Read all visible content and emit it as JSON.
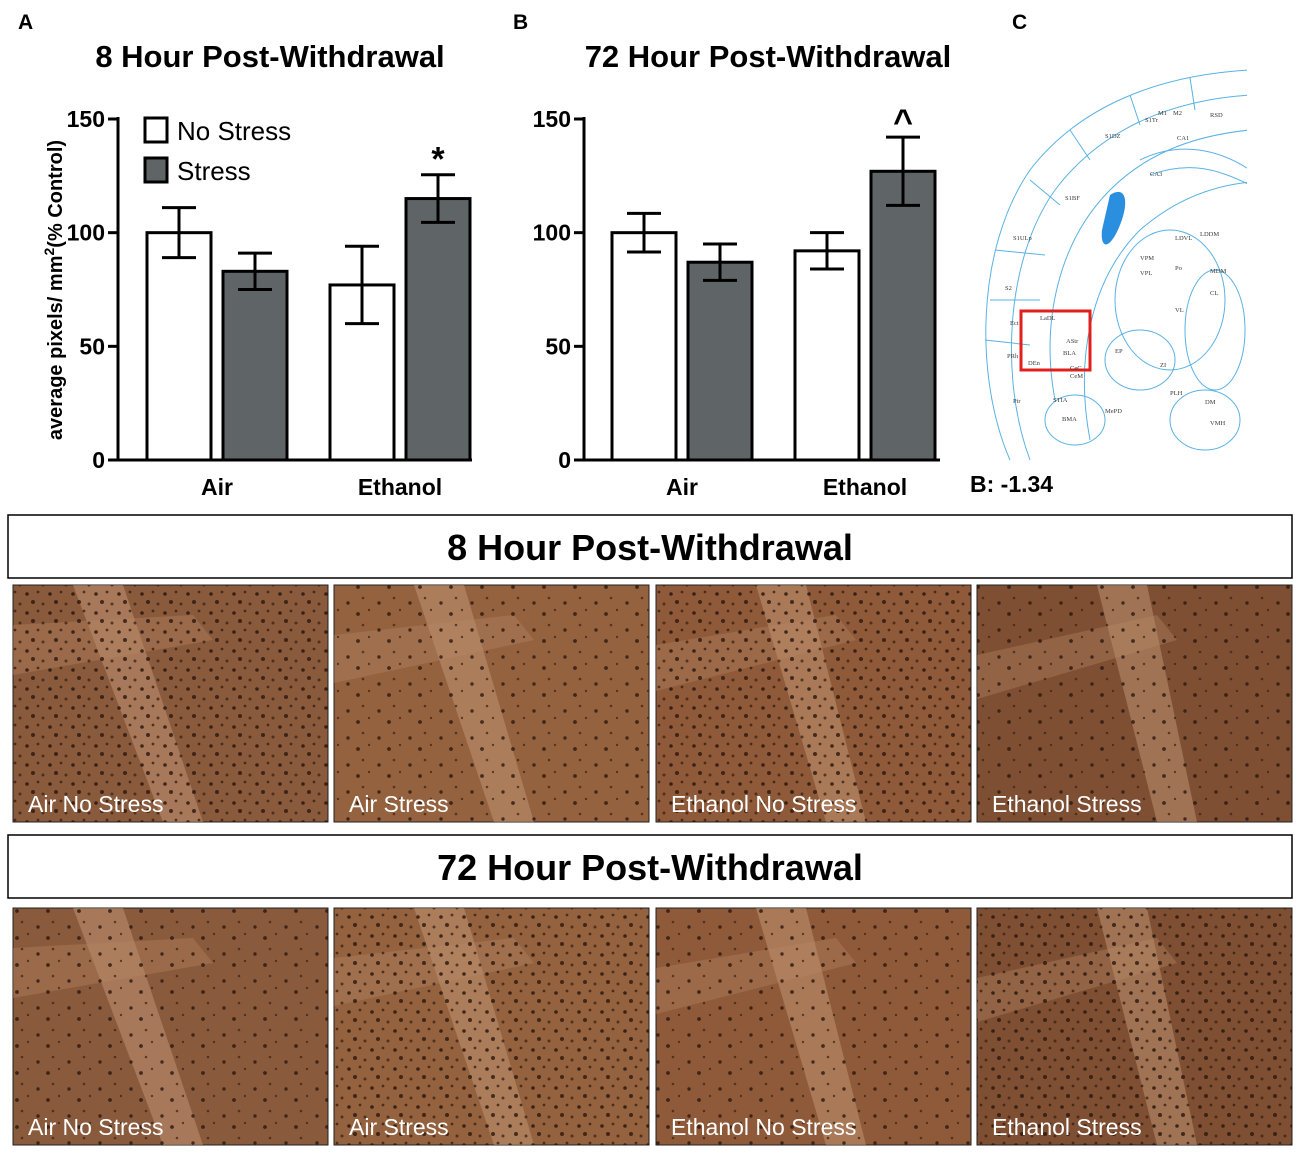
{
  "panel_labels": [
    "A",
    "B",
    "C"
  ],
  "chart_data": [
    {
      "type": "bar",
      "title": "8 Hour Post-Withdrawal",
      "ylabel": "average pixels/ mm",
      "ylabel_sup": "2",
      "ylabel_end": "(% Control)",
      "categories": [
        "Air",
        "Ethanol"
      ],
      "series": [
        {
          "name": "No Stress",
          "color": "#ffffff",
          "values": [
            100,
            77
          ],
          "errors": [
            11,
            17
          ]
        },
        {
          "name": "Stress",
          "color": "#5f6566",
          "values": [
            83,
            115
          ],
          "errors": [
            8,
            10.5
          ]
        }
      ],
      "ylim": [
        0,
        150
      ],
      "yticks": [
        0,
        50,
        100,
        150
      ],
      "legend": "upper left",
      "annotation": "*"
    },
    {
      "type": "bar",
      "title": "72 Hour Post-Withdrawal",
      "categories": [
        "Air",
        "Ethanol"
      ],
      "series": [
        {
          "color": "#ffffff",
          "values": [
            100,
            92
          ],
          "errors": [
            8.5,
            8
          ]
        },
        {
          "color": "#5f6566",
          "values": [
            87,
            127
          ],
          "errors": [
            8,
            15
          ]
        }
      ],
      "ylim": [
        0,
        150
      ],
      "yticks": [
        0,
        50,
        100,
        150
      ],
      "annotation": "^"
    }
  ],
  "atlas": {
    "labels": [
      "M1",
      "M2",
      "RSD",
      "S1Tr",
      "S1DZ",
      "S1BF",
      "S1ULp",
      "S2",
      "Ect",
      "PRh",
      "DEn",
      "LaDL",
      "BLA",
      "AStr",
      "CeC",
      "CeM",
      "Pir",
      "BMA",
      "MePD",
      "STIA",
      "CA1",
      "CA3",
      "LDVL",
      "VPL",
      "VPM",
      "Po",
      "VL",
      "EP",
      "ZI",
      "PLH",
      "DM",
      "VMH",
      "LDDM",
      "MDM",
      "CL"
    ],
    "bregma": "B: -1.34"
  },
  "micrographs": [
    {
      "header": "8 Hour Post-Withdrawal",
      "captions": [
        "Air No Stress",
        "Air Stress",
        "Ethanol No Stress",
        "Ethanol Stress"
      ]
    },
    {
      "header": "72 Hour Post-Withdrawal",
      "captions": [
        "Air No Stress",
        "Air Stress",
        "Ethanol No Stress",
        "Ethanol Stress"
      ]
    }
  ]
}
